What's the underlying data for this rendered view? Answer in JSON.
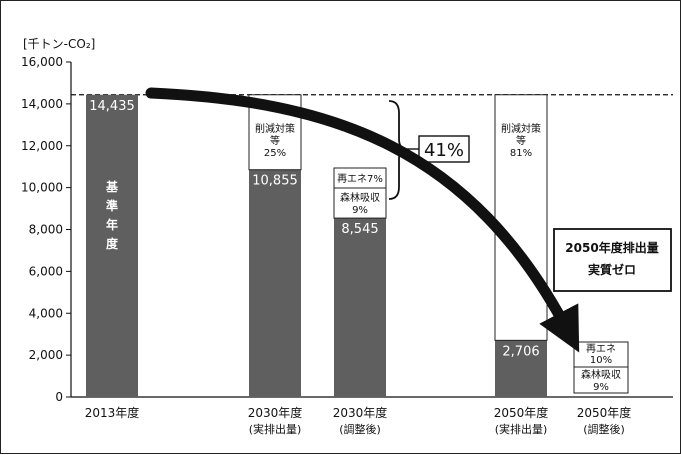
{
  "chart_data": {
    "type": "bar",
    "unit_label": "[千トン-CO₂]",
    "ylim": [
      0,
      16000
    ],
    "yticks": [
      "0",
      "2,000",
      "4,000",
      "6,000",
      "8,000",
      "10,000",
      "12,000",
      "14,000",
      "16,000"
    ],
    "categories": [
      {
        "line1": "2013年度",
        "line2": ""
      },
      {
        "line1": "2030年度",
        "line2": "(実排出量)"
      },
      {
        "line1": "2030年度",
        "line2": "(調整後)"
      },
      {
        "line1": "2050年度",
        "line2": "(実排出量)"
      },
      {
        "line1": "2050年度",
        "line2": "(調整後)"
      }
    ],
    "bars": [
      {
        "value": 14435,
        "label": "14,435",
        "inner_text": [
          "基",
          "準",
          "年",
          "度"
        ]
      },
      {
        "value": 10855,
        "label": "10,855"
      },
      {
        "value": 8545,
        "label": "8,545"
      },
      {
        "value": 2706,
        "label": "2,706"
      },
      {
        "value": 0
      }
    ],
    "stacked_boxes": [
      {
        "bar": 1,
        "from": 10855,
        "to": 14435,
        "lines": [
          "削減対策",
          "等",
          "25%"
        ]
      },
      {
        "bar": 2,
        "lines": [
          "再エネ7%"
        ]
      },
      {
        "bar": 2,
        "lines": [
          "森林吸収",
          "9%"
        ]
      },
      {
        "bar": 3,
        "from": 2706,
        "to": 14435,
        "lines": [
          "削減対策",
          "等",
          "81%"
        ]
      },
      {
        "bar": 4,
        "lines": [
          "再エネ",
          "10%"
        ]
      },
      {
        "bar": 4,
        "lines": [
          "森林吸収",
          "9%"
        ]
      }
    ],
    "reference_line": 14435,
    "reduction_label": "41%",
    "goal_lines": [
      "2050年度排出量",
      "実質ゼロ"
    ],
    "colors": {
      "bar": "#5f5f5f",
      "box_border": "#222222",
      "arrow": "#111111"
    }
  }
}
